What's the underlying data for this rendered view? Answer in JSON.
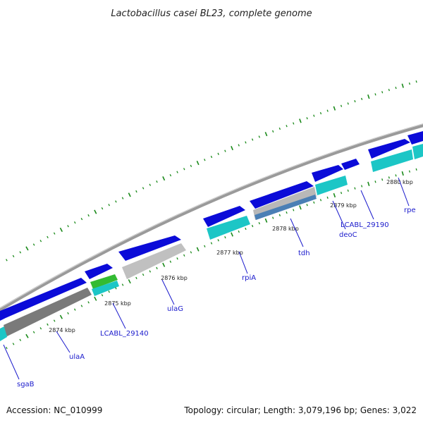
{
  "title": "Lactobacillus casei BL23, complete genome",
  "accession": "Accession: NC_010999",
  "topology": "Topology: circular; Length: 3,079,196 bp; Genes: 3,022",
  "colors": {
    "cds": "#0b0bd8",
    "rrna_like": "#1cc6c6",
    "gray": "#c0c0c0",
    "dark_gray": "#7a7a7a",
    "tick_green": "#1a8a1a",
    "label_blue": "#1a1acc",
    "backbone": "#9a9a9a",
    "green_feature": "#33bb33",
    "steel_blue": "#4a7fb5"
  },
  "kbp_labels": [
    "2874 kbp",
    "2875 kbp",
    "2876 kbp",
    "2877 kbp",
    "2878 kbp",
    "2879 kbp",
    "2880 kbp"
  ],
  "genes": [
    {
      "name": "sgaB"
    },
    {
      "name": "ulaA"
    },
    {
      "name": "LCABL_29140"
    },
    {
      "name": "ulaG"
    },
    {
      "name": "rpiA"
    },
    {
      "name": "tdh"
    },
    {
      "name": "deoC"
    },
    {
      "name": "LCABL_29190"
    },
    {
      "name": "rpe"
    }
  ]
}
